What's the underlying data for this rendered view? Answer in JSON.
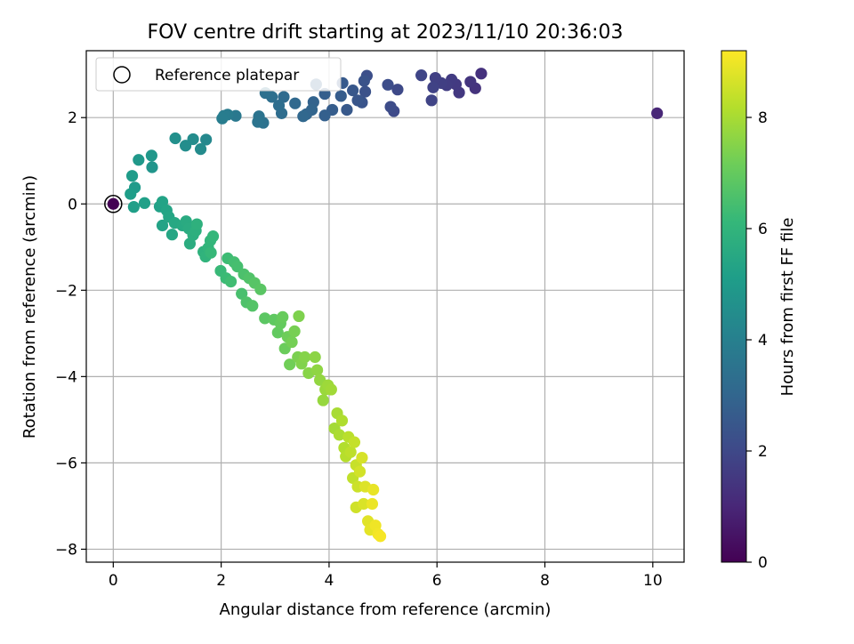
{
  "chart_data": {
    "type": "scatter",
    "title": "FOV centre drift starting at 2023/11/10 20:36:03",
    "xlabel": "Angular distance from reference (arcmin)",
    "ylabel": "Rotation from reference (arcmin)",
    "xlim": [
      -0.5,
      10.58
    ],
    "ylim": [
      -8.3,
      3.55
    ],
    "xticks": [
      0,
      2,
      4,
      6,
      8,
      10
    ],
    "yticks": [
      -8,
      -6,
      -4,
      -2,
      0,
      2
    ],
    "grid": true,
    "legend": {
      "position": "top-left",
      "entries": [
        "Reference platepar"
      ]
    },
    "colorbar": {
      "label": "Hours from first FF file",
      "range": [
        0,
        9.2
      ],
      "ticks": [
        0,
        2,
        4,
        6,
        8
      ],
      "colormap": "viridis"
    },
    "reference_point": {
      "x": 0,
      "y": 0
    },
    "points": [
      [
        10.08,
        2.1,
        1.0
      ],
      [
        6.82,
        3.02,
        1.3
      ],
      [
        6.71,
        2.68,
        1.35
      ],
      [
        6.62,
        2.83,
        1.4
      ],
      [
        6.41,
        2.58,
        1.5
      ],
      [
        6.35,
        2.77,
        1.55
      ],
      [
        6.27,
        2.88,
        1.6
      ],
      [
        6.18,
        2.75,
        1.65
      ],
      [
        6.08,
        2.8,
        1.7
      ],
      [
        5.97,
        2.92,
        1.75
      ],
      [
        5.93,
        2.7,
        1.8
      ],
      [
        5.9,
        2.4,
        1.85
      ],
      [
        5.71,
        2.98,
        1.9
      ],
      [
        5.27,
        2.65,
        2.0
      ],
      [
        5.2,
        2.15,
        2.05
      ],
      [
        5.14,
        2.25,
        2.1
      ],
      [
        5.09,
        2.76,
        2.15
      ],
      [
        4.7,
        2.97,
        2.2
      ],
      [
        4.67,
        2.6,
        2.3
      ],
      [
        4.65,
        2.85,
        2.35
      ],
      [
        4.61,
        2.35,
        2.4
      ],
      [
        4.53,
        2.4,
        2.45
      ],
      [
        4.44,
        2.63,
        2.5
      ],
      [
        4.33,
        2.18,
        2.55
      ],
      [
        4.25,
        2.8,
        2.6
      ],
      [
        4.22,
        2.5,
        2.65
      ],
      [
        4.06,
        2.18,
        2.7
      ],
      [
        3.92,
        2.55,
        2.75
      ],
      [
        3.92,
        2.05,
        2.8
      ],
      [
        3.76,
        2.77,
        2.85
      ],
      [
        3.71,
        2.36,
        2.9
      ],
      [
        3.68,
        2.18,
        2.95
      ],
      [
        3.58,
        2.08,
        3.0
      ],
      [
        3.52,
        2.03,
        3.05
      ],
      [
        3.37,
        2.33,
        3.1
      ],
      [
        3.16,
        2.48,
        3.2
      ],
      [
        3.12,
        2.1,
        3.25
      ],
      [
        3.07,
        2.28,
        3.3
      ],
      [
        2.94,
        2.48,
        3.35
      ],
      [
        2.82,
        2.57,
        3.4
      ],
      [
        2.78,
        1.88,
        3.45
      ],
      [
        2.7,
        2.03,
        3.5
      ],
      [
        2.68,
        1.9,
        3.55
      ],
      [
        2.27,
        2.04,
        3.7
      ],
      [
        2.12,
        2.07,
        3.8
      ],
      [
        2.05,
        2.04,
        3.85
      ],
      [
        2.02,
        1.98,
        3.9
      ],
      [
        1.72,
        1.49,
        4.3
      ],
      [
        1.62,
        1.27,
        4.4
      ],
      [
        1.48,
        1.5,
        4.45
      ],
      [
        1.34,
        1.35,
        4.5
      ],
      [
        1.15,
        1.52,
        4.6
      ],
      [
        0.72,
        0.85,
        4.8
      ],
      [
        0.71,
        1.12,
        4.85
      ],
      [
        0.47,
        1.02,
        4.9
      ],
      [
        0.4,
        0.38,
        5.0
      ],
      [
        0.35,
        0.65,
        5.05
      ],
      [
        0.32,
        0.23,
        5.1
      ],
      [
        0.38,
        -0.07,
        5.15
      ],
      [
        0.58,
        0.02,
        5.2
      ],
      [
        0.86,
        -0.06,
        5.25
      ],
      [
        0.91,
        0.05,
        5.3
      ],
      [
        0.91,
        -0.5,
        5.3
      ],
      [
        0.99,
        -0.15,
        5.35
      ],
      [
        1.03,
        -0.3,
        5.4
      ],
      [
        1.09,
        -0.71,
        5.45
      ],
      [
        1.14,
        -0.44,
        5.5
      ],
      [
        1.28,
        -0.5,
        5.55
      ],
      [
        1.35,
        -0.4,
        5.6
      ],
      [
        1.4,
        -0.57,
        5.65
      ],
      [
        1.42,
        -0.92,
        5.7
      ],
      [
        1.48,
        -0.72,
        5.75
      ],
      [
        1.53,
        -0.62,
        5.8
      ],
      [
        1.55,
        -0.47,
        5.85
      ],
      [
        1.67,
        -1.11,
        5.9
      ],
      [
        1.71,
        -1.22,
        5.95
      ],
      [
        1.76,
        -1.02,
        6.0
      ],
      [
        1.8,
        -0.85,
        6.05
      ],
      [
        1.85,
        -0.75,
        6.1
      ],
      [
        1.81,
        -1.13,
        6.15
      ],
      [
        1.99,
        -1.55,
        6.2
      ],
      [
        2.09,
        -1.72,
        6.25
      ],
      [
        2.12,
        -1.26,
        6.3
      ],
      [
        2.18,
        -1.8,
        6.35
      ],
      [
        2.24,
        -1.35,
        6.4
      ],
      [
        2.3,
        -1.45,
        6.45
      ],
      [
        2.38,
        -2.08,
        6.5
      ],
      [
        2.42,
        -1.63,
        6.55
      ],
      [
        2.47,
        -2.28,
        6.6
      ],
      [
        2.52,
        -1.72,
        6.65
      ],
      [
        2.58,
        -2.36,
        6.7
      ],
      [
        2.62,
        -1.83,
        6.75
      ],
      [
        2.73,
        -1.98,
        6.8
      ],
      [
        2.81,
        -2.65,
        6.85
      ],
      [
        2.98,
        -2.68,
        6.9
      ],
      [
        3.05,
        -2.98,
        6.95
      ],
      [
        3.1,
        -2.77,
        7.0
      ],
      [
        3.14,
        -2.62,
        7.05
      ],
      [
        3.18,
        -3.35,
        7.1
      ],
      [
        3.23,
        -3.08,
        7.15
      ],
      [
        3.27,
        -3.72,
        7.2
      ],
      [
        3.31,
        -3.2,
        7.25
      ],
      [
        3.36,
        -2.95,
        7.3
      ],
      [
        3.42,
        -3.55,
        7.35
      ],
      [
        3.44,
        -2.6,
        7.4
      ],
      [
        3.49,
        -3.7,
        7.45
      ],
      [
        3.55,
        -3.55,
        7.5
      ],
      [
        3.62,
        -3.92,
        7.55
      ],
      [
        3.74,
        -3.55,
        7.6
      ],
      [
        3.78,
        -3.85,
        7.65
      ],
      [
        3.83,
        -4.08,
        7.7
      ],
      [
        3.89,
        -4.55,
        7.75
      ],
      [
        3.93,
        -4.3,
        7.8
      ],
      [
        3.98,
        -4.2,
        7.85
      ],
      [
        4.04,
        -4.3,
        7.9
      ],
      [
        4.1,
        -5.2,
        7.95
      ],
      [
        4.15,
        -4.85,
        8.0
      ],
      [
        4.19,
        -5.35,
        8.05
      ],
      [
        4.24,
        -5.02,
        8.1
      ],
      [
        4.28,
        -5.65,
        8.15
      ],
      [
        4.31,
        -5.85,
        8.2
      ],
      [
        4.36,
        -5.4,
        8.25
      ],
      [
        4.4,
        -5.75,
        8.3
      ],
      [
        4.44,
        -6.35,
        8.35
      ],
      [
        4.47,
        -5.52,
        8.4
      ],
      [
        4.5,
        -6.05,
        8.45
      ],
      [
        4.53,
        -6.55,
        8.5
      ],
      [
        4.5,
        -7.03,
        8.55
      ],
      [
        4.57,
        -6.2,
        8.6
      ],
      [
        4.61,
        -5.88,
        8.65
      ],
      [
        4.64,
        -6.95,
        8.7
      ],
      [
        4.67,
        -6.55,
        8.75
      ],
      [
        4.72,
        -7.35,
        8.8
      ],
      [
        4.76,
        -7.55,
        8.85
      ],
      [
        4.82,
        -6.62,
        8.9
      ],
      [
        4.8,
        -6.95,
        8.95
      ],
      [
        4.86,
        -7.45,
        9.0
      ],
      [
        4.91,
        -7.65,
        9.05
      ],
      [
        4.95,
        -7.7,
        9.1
      ]
    ]
  }
}
